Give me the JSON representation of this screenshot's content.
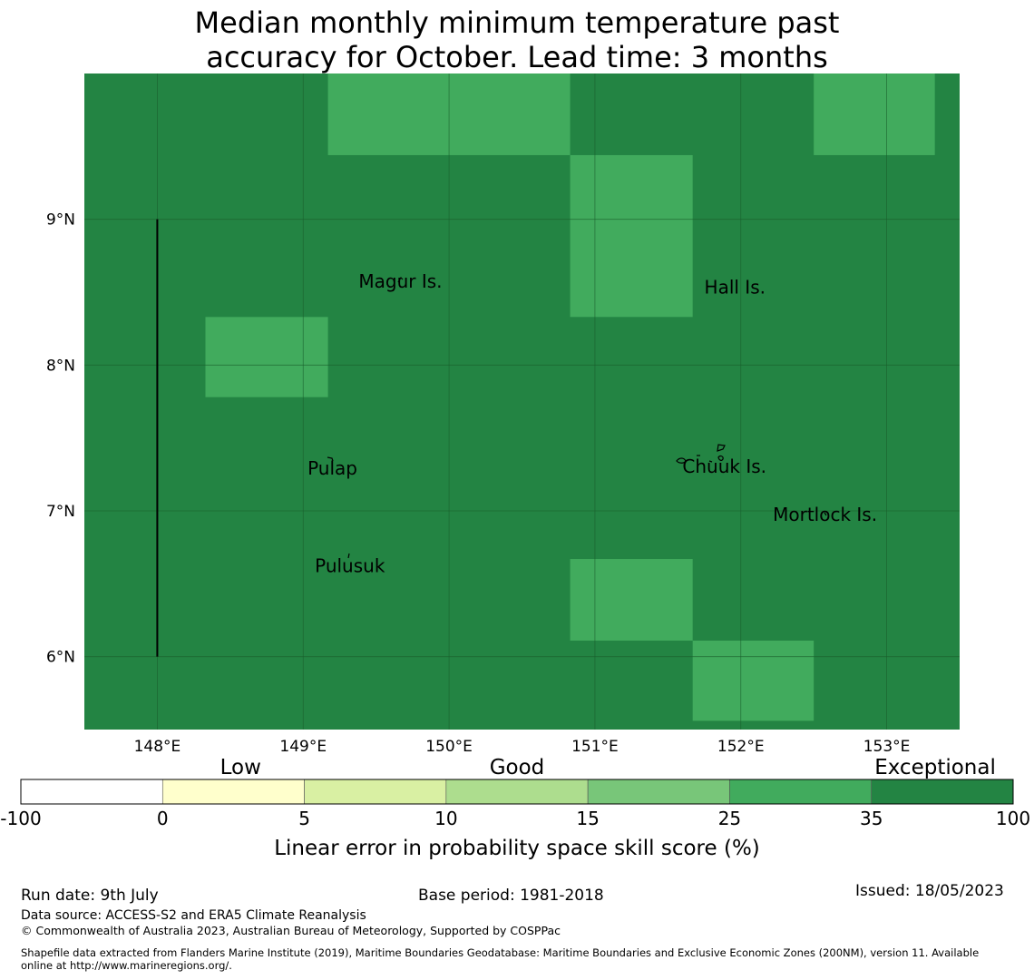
{
  "title": {
    "line1": "Median monthly minimum temperature past",
    "line2": "accuracy for October. Lead time: 3 months"
  },
  "map": {
    "lon_range": [
      147.5,
      153.5
    ],
    "lat_range": [
      5.5,
      10.0
    ],
    "lat_ticks": [
      {
        "value": 9,
        "label": "9°N"
      },
      {
        "value": 8,
        "label": "8°N"
      },
      {
        "value": 7,
        "label": "7°N"
      },
      {
        "value": 6,
        "label": "6°N"
      }
    ],
    "lon_ticks": [
      {
        "value": 148,
        "label": "148°E"
      },
      {
        "value": 149,
        "label": "149°E"
      },
      {
        "value": 150,
        "label": "150°E"
      },
      {
        "value": 151,
        "label": "151°E"
      },
      {
        "value": 152,
        "label": "152°E"
      },
      {
        "value": 153,
        "label": "153°E"
      }
    ],
    "background_category": "Exceptional",
    "cells_25_35": [
      {
        "lon_min": 149.17,
        "lon_max": 150.83,
        "lat_min": 9.44,
        "lat_max": 10.0
      },
      {
        "lon_min": 152.5,
        "lon_max": 153.33,
        "lat_min": 9.44,
        "lat_max": 10.0
      },
      {
        "lon_min": 150.83,
        "lon_max": 151.67,
        "lat_min": 8.33,
        "lat_max": 9.44
      },
      {
        "lon_min": 148.33,
        "lon_max": 149.17,
        "lat_min": 7.78,
        "lat_max": 8.33
      },
      {
        "lon_min": 150.83,
        "lon_max": 151.67,
        "lat_min": 6.11,
        "lat_max": 6.67
      },
      {
        "lon_min": 151.67,
        "lon_max": 152.5,
        "lat_min": 5.56,
        "lat_max": 6.11
      }
    ],
    "boundary_line": {
      "lon": 148.0,
      "lat_from": 6.0,
      "lat_to": 9.0
    },
    "places": [
      {
        "name": "Magur Is.",
        "lon": 149.38,
        "lat": 8.53
      },
      {
        "name": "Hall Is.",
        "lon": 151.75,
        "lat": 8.49
      },
      {
        "name": "Pulap",
        "lon": 149.03,
        "lat": 7.25
      },
      {
        "name": "Chuuk Is.",
        "lon": 151.6,
        "lat": 7.26
      },
      {
        "name": "Mortlock Is.",
        "lon": 152.22,
        "lat": 6.93
      },
      {
        "name": "Pulusuk",
        "lon": 149.08,
        "lat": 6.58
      }
    ]
  },
  "legend": {
    "category_labels": [
      "Low",
      "Good",
      "Exceptional"
    ],
    "tick_labels": [
      "-100",
      "0",
      "5",
      "10",
      "15",
      "25",
      "35",
      "100"
    ],
    "colors": [
      "#ffffff",
      "#ffffcc",
      "#d9f0a3",
      "#addd8e",
      "#78c679",
      "#41ab5d",
      "#238443"
    ],
    "title": "Linear error in probability space skill score (%)"
  },
  "colors": {
    "exceptional": "#238443",
    "very_good": "#41ab5d",
    "grid": "#1a5e2c"
  },
  "footer": {
    "run_date": "Run date: 9th July",
    "base_period": "Base period: 1981-2018",
    "issued": "Issued: 18/05/2023",
    "data_source": "Data source: ACCESS-S2 and ERA5 Climate Reanalysis",
    "copyright": "© Commonwealth of Australia 2023, Australian Bureau of Meteorology, Supported by COSPPac",
    "shapefile_line1": "Shapefile data extracted from Flanders Marine Institute (2019), Maritime Boundaries Geodatabase: Maritime Boundaries and Exclusive Economic Zones (200NM), version 11. Available",
    "shapefile_line2": "online at http://www.marineregions.org/."
  }
}
